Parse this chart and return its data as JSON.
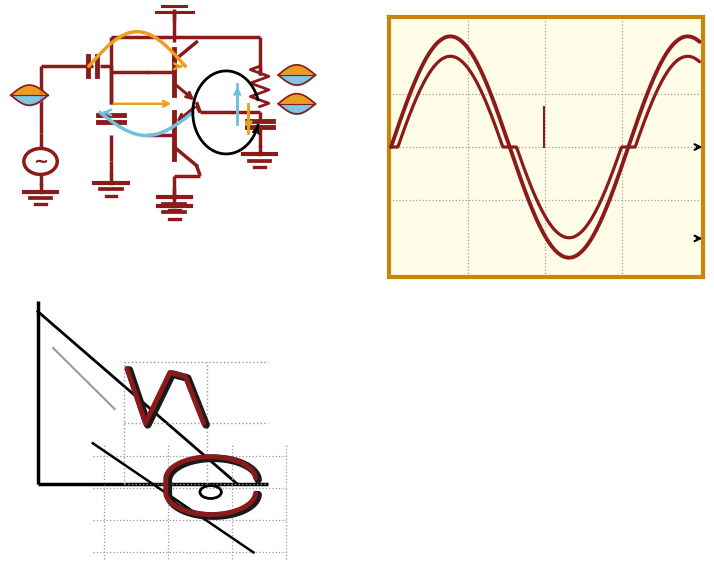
{
  "bg_color": "#ffffff",
  "circuit_color": "#8B1A1A",
  "wave_bg": "#FFFDE7",
  "wave_border": "#C8860A",
  "wave_color": "#8B1A1A",
  "grid_color": "#888888",
  "sine_linewidth": 2.8,
  "yellow_color": "#E8A020",
  "blue_color": "#72C0E0",
  "black_outline": "#1a1a1a",
  "load_line_color": "#111111",
  "gray_color": "#999999",
  "dot_color": "#999999"
}
